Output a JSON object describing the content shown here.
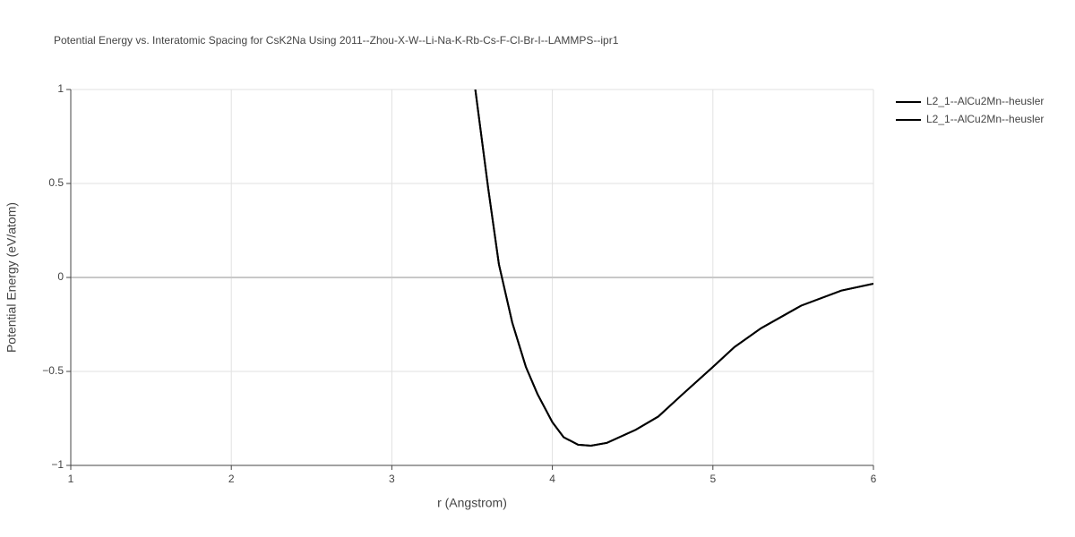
{
  "chart_data": {
    "type": "line",
    "title": "Potential Energy vs. Interatomic Spacing for CsK2Na Using 2011--Zhou-X-W--Li-Na-K-Rb-Cs-F-Cl-Br-I--LAMMPS--ipr1",
    "x_label": "r (Angstrom)",
    "y_label": "Potential Energy (eV/atom)",
    "x": [
      3.52,
      3.6,
      3.667,
      3.75,
      3.835,
      3.907,
      4.0,
      4.07,
      4.16,
      4.24,
      4.34,
      4.52,
      4.66,
      4.8,
      5.0,
      5.135,
      5.3,
      5.55,
      5.8,
      6.0
    ],
    "series": [
      {
        "name": "L2_1--AlCu2Mn--heusler",
        "color": "#000000",
        "values": [
          1.0,
          0.476,
          0.07,
          -0.24,
          -0.476,
          -0.62,
          -0.77,
          -0.85,
          -0.89,
          -0.895,
          -0.88,
          -0.81,
          -0.74,
          -0.63,
          -0.476,
          -0.37,
          -0.27,
          -0.15,
          -0.07,
          -0.033
        ]
      },
      {
        "name": "L2_1--AlCu2Mn--heusler",
        "color": "#000000",
        "values": [
          1.0,
          0.476,
          0.07,
          -0.24,
          -0.476,
          -0.62,
          -0.77,
          -0.85,
          -0.89,
          -0.895,
          -0.88,
          -0.81,
          -0.74,
          -0.63,
          -0.476,
          -0.37,
          -0.27,
          -0.15,
          -0.07,
          -0.033
        ]
      }
    ],
    "xlim": [
      1,
      6
    ],
    "xticks": [
      1,
      2,
      3,
      4,
      5,
      6
    ],
    "ylim": [
      -1,
      1
    ],
    "yticks": [
      {
        "value": -1,
        "label": "−1"
      },
      {
        "value": -0.5,
        "label": "−0.5"
      },
      0,
      0.5,
      1
    ],
    "grid": true,
    "legend": "top-right"
  }
}
